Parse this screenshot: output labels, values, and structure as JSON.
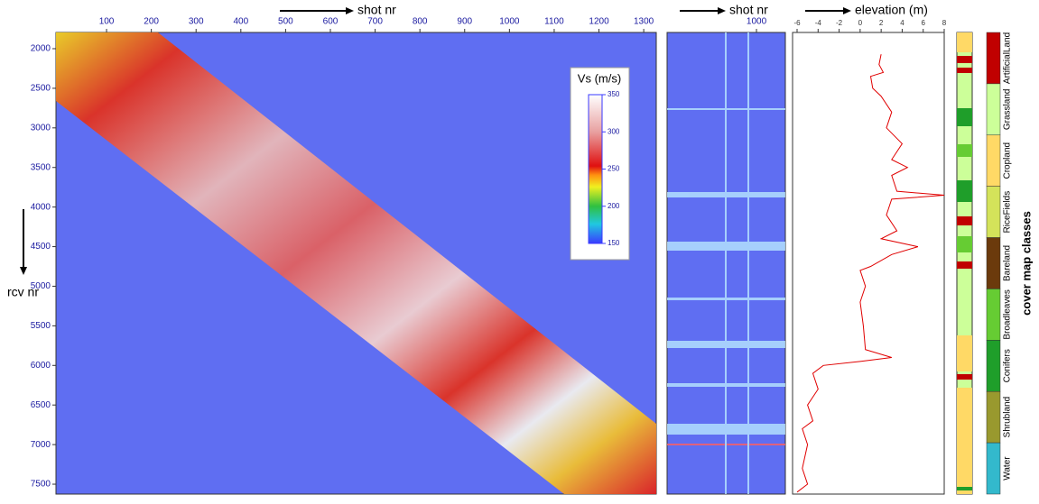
{
  "chart_data": [
    {
      "type": "heatmap",
      "x_label": "shot nr",
      "y_label": "rcv nr",
      "xlim": [
        -13,
        1328
      ],
      "xticks": [
        100,
        200,
        300,
        400,
        500,
        600,
        700,
        800,
        900,
        1000,
        1100,
        1200,
        1300
      ],
      "ylim": [
        1795,
        7625
      ],
      "yticks": [
        2000,
        2500,
        3000,
        3500,
        4000,
        4500,
        5000,
        5500,
        6000,
        6500,
        7000,
        7500
      ],
      "colorbar": {
        "label": "Vs (m/s)",
        "lim": [
          150,
          350
        ],
        "ticks": [
          150,
          200,
          250,
          300,
          350
        ]
      }
    },
    {
      "type": "heatmap",
      "x_label": "shot nr",
      "xlim": [
        0,
        1323
      ],
      "xticks": [
        1000
      ]
    },
    {
      "type": "line",
      "orientation": "horizontal",
      "y_label": "elevation (m)",
      "color": "#e00000",
      "xlim": [
        1795,
        7625
      ],
      "x": [
        2070,
        2200,
        2300,
        2350,
        2500,
        2600,
        2800,
        3000,
        3200,
        3400,
        3500,
        3600,
        3800,
        3850,
        3900,
        4100,
        4300,
        4400,
        4500,
        4600,
        4750,
        4800,
        5000,
        5200,
        5500,
        5800,
        5900,
        5950,
        6000,
        6100,
        6300,
        6500,
        6700,
        6800,
        7000,
        7300,
        7500,
        7600
      ],
      "values": [
        2,
        1.8,
        2.2,
        1,
        1.2,
        2,
        3,
        2.5,
        4,
        3,
        4.5,
        3,
        3.5,
        8,
        3,
        2.5,
        3.5,
        2,
        5.5,
        3,
        1,
        0,
        0.5,
        0,
        0.3,
        0.5,
        3,
        0,
        -3.5,
        -4.5,
        -4,
        -5,
        -4.5,
        -5.5,
        -5,
        -5.5,
        -5,
        -6
      ],
      "ylim": [
        -6.43,
        8
      ],
      "yticks": [
        -6,
        -4,
        -2,
        0,
        2,
        4,
        6,
        8
      ]
    },
    {
      "type": "legend",
      "title": "cover map classes",
      "categories": [
        "ArtificialLand",
        "Grassland",
        "Cropland",
        "RiceFields",
        "Bareland",
        "Broadleaves",
        "Conifers",
        "Shrubland",
        "Water"
      ],
      "colors": [
        "#c00000",
        "#ccff99",
        "#ffd966",
        "#d4e35a",
        "#6b3a0c",
        "#66cc33",
        "#1f9e2a",
        "#99992e",
        "#33b9cc"
      ]
    }
  ]
}
